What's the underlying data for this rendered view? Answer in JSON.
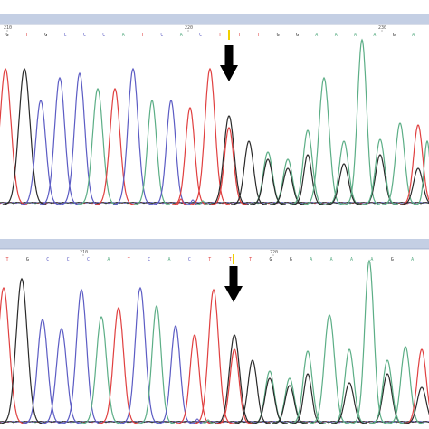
{
  "colors": {
    "A": "#5cae86",
    "C": "#5c5cc4",
    "G": "#2a2a2a",
    "T": "#e04040",
    "header_bar": "#c4cfe4",
    "arrow": "#000000",
    "cursor": "#f0d000"
  },
  "icons": {
    "arrow": "down-arrow-icon"
  },
  "panels": [
    {
      "position_labels": [
        "210",
        "220",
        "230"
      ],
      "bases": [
        "G",
        "T",
        "G",
        "C",
        "C",
        "C",
        "A",
        "T",
        "C",
        "A",
        "C",
        "T",
        "T",
        "T",
        "G",
        "G",
        "A",
        "A",
        "A",
        "A",
        "G",
        "A"
      ]
    },
    {
      "position_labels": [
        "210",
        "220"
      ],
      "bases": [
        "T",
        "G",
        "C",
        "C",
        "C",
        "A",
        "T",
        "C",
        "A",
        "C",
        "T",
        "T",
        "T",
        "G",
        "G",
        "A",
        "A",
        "A",
        "A",
        "G",
        "A"
      ]
    }
  ]
}
